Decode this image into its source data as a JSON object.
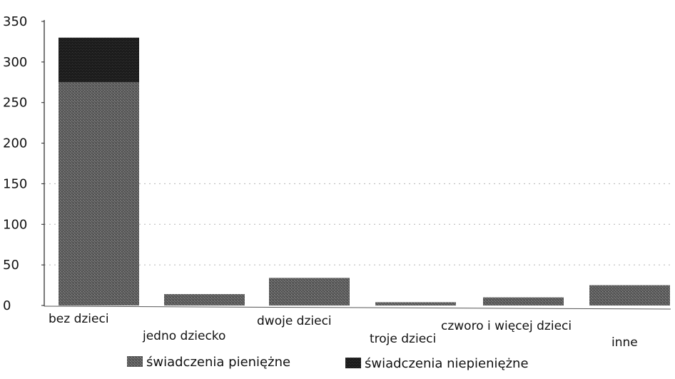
{
  "chart_data": {
    "type": "bar",
    "stacked": true,
    "categories": [
      "bez dzieci",
      "jedno dziecko",
      "dwoje dzieci",
      "troje dzieci",
      "czworo i więcej dzieci",
      "inne"
    ],
    "series": [
      {
        "name": "świadczenia pieniężne",
        "values": [
          275,
          14,
          34,
          4,
          10,
          25
        ],
        "color": "#5e5e5e"
      },
      {
        "name": "świadczenia niepieniężne",
        "values": [
          55,
          0,
          0,
          0,
          0,
          0
        ],
        "color": "#1c1c1c"
      }
    ],
    "ylim": [
      0,
      350
    ],
    "yticks": [
      "0",
      "50",
      "100",
      "150",
      "200",
      "250",
      "300",
      "350"
    ],
    "grid": "dotted horizontal",
    "legend_position": "bottom"
  }
}
